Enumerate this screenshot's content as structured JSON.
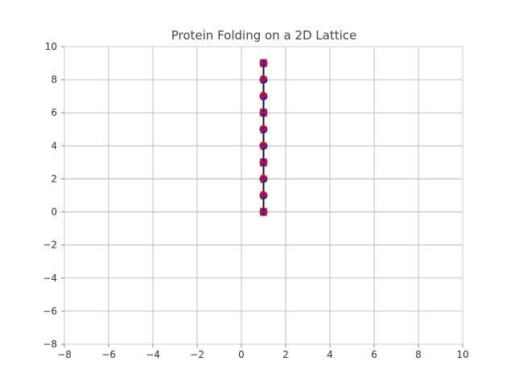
{
  "chart_data": {
    "type": "line",
    "title": "Protein Folding on a 2D Lattice",
    "xlabel": "",
    "ylabel": "",
    "xlim": [
      -8,
      10
    ],
    "ylim": [
      -8,
      10
    ],
    "xticks": [
      -8,
      -6,
      -4,
      -2,
      0,
      2,
      4,
      6,
      8,
      10
    ],
    "yticks": [
      -8,
      -6,
      -4,
      -2,
      0,
      2,
      4,
      6,
      8,
      10
    ],
    "grid": true,
    "series": [
      {
        "x": [
          1,
          1,
          1,
          1,
          1,
          1,
          1,
          1,
          1,
          1
        ],
        "y": [
          0,
          1,
          2,
          3,
          4,
          5,
          6,
          7,
          8,
          9
        ],
        "residues": [
          "H",
          "P",
          "P",
          "H",
          "P",
          "P",
          "H",
          "P",
          "P",
          "H"
        ],
        "line_color": "#111111",
        "marker_color": "#1a1adb",
        "label_color": "#dd1111"
      }
    ]
  }
}
